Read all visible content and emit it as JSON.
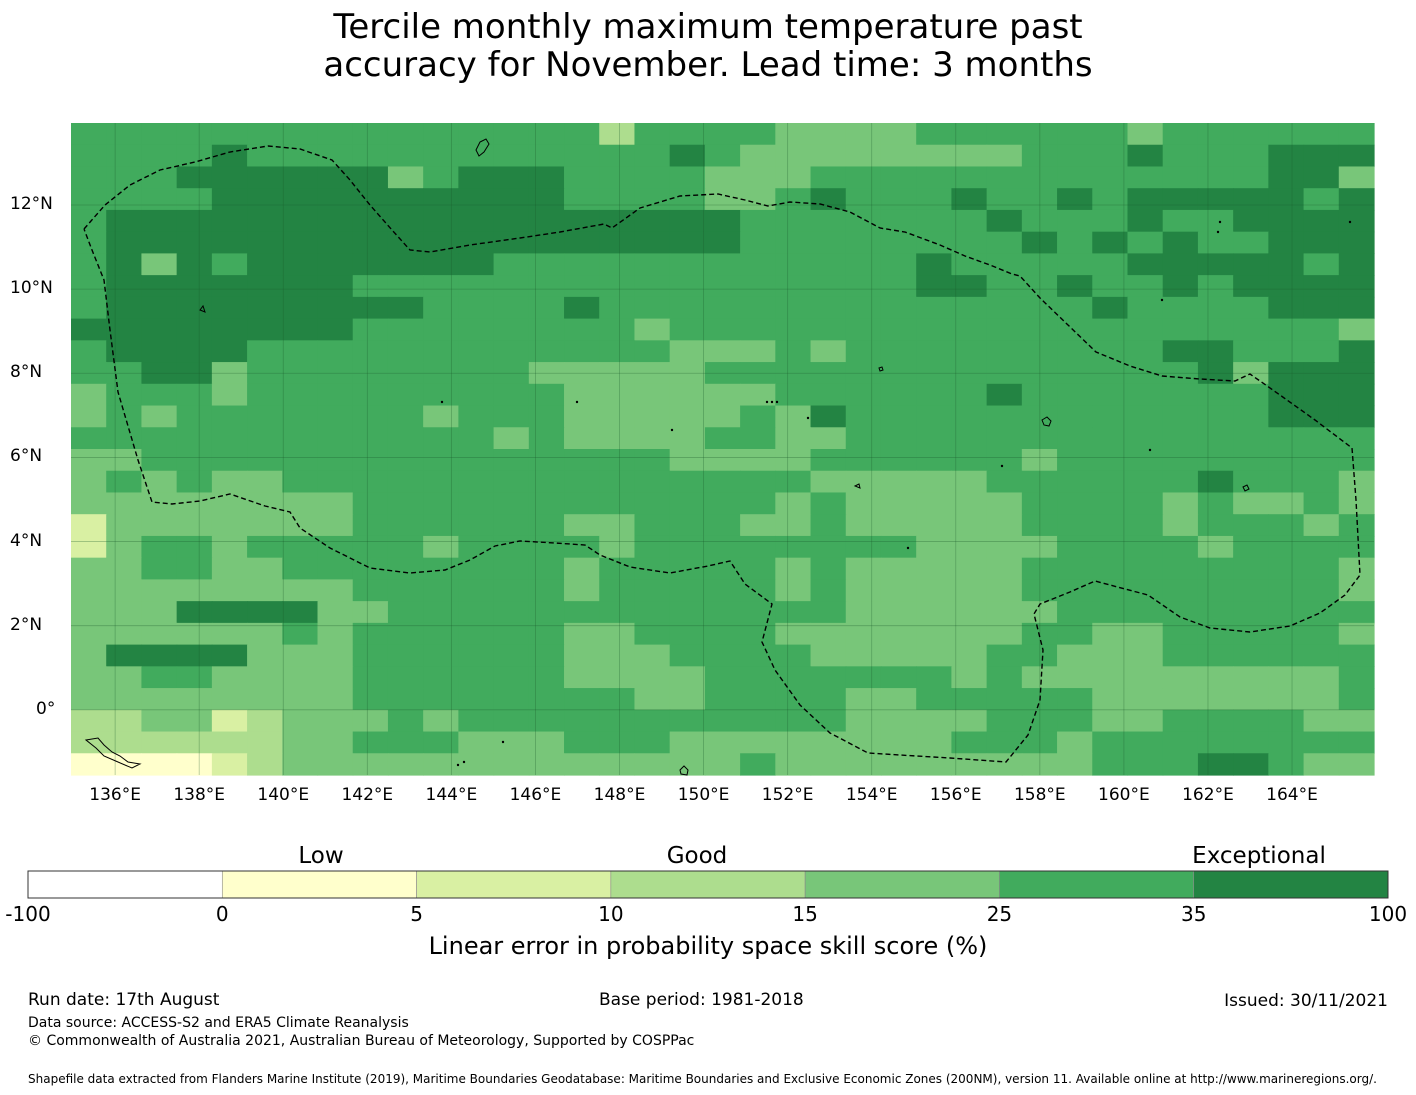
{
  "title": {
    "line1": "Tercile monthly maximum temperature past",
    "line2": "accuracy for November. Lead time: 3 months"
  },
  "map": {
    "lat_ticks": [
      "12°N",
      "10°N",
      "8°N",
      "6°N",
      "4°N",
      "2°N",
      "0°"
    ],
    "lon_ticks": [
      "136°E",
      "138°E",
      "140°E",
      "142°E",
      "144°E",
      "146°E",
      "148°E",
      "150°E",
      "152°E",
      "154°E",
      "156°E",
      "158°E",
      "160°E",
      "162°E",
      "164°E"
    ],
    "lon_range": [
      134.95,
      165.95
    ],
    "lat_range": [
      -1.55,
      13.95
    ],
    "gridlines": true,
    "boundary": "dashed"
  },
  "colorbar": {
    "categories": [
      "Low",
      "Good",
      "Exceptional"
    ],
    "tick_labels": [
      "-100",
      "0",
      "5",
      "10",
      "15",
      "25",
      "35",
      "100"
    ],
    "colors": [
      "#ffffff",
      "#ffffcc",
      "#d9f0a3",
      "#addd8e",
      "#78c679",
      "#41ab5d",
      "#238443"
    ],
    "label": "Linear error in probability space skill score (%)"
  },
  "footer": {
    "run_date": "Run date: 17th August",
    "base_period": "Base period: 1981-2018",
    "issued": "Issued: 30/11/2021",
    "data_source": "Data source: ACCESS-S2 and ERA5 Climate Reanalysis",
    "copyright": "© Commonwealth of Australia 2021, Australian Bureau of Meteorology, Supported by COSPPac",
    "shapefile": "Shapefile data extracted from Flanders Marine Institute (2019), Maritime Boundaries Geodatabase: Maritime Boundaries and Exclusive Economic Zones (200NM), version 11. Available online at http://www.marineregions.org/."
  }
}
